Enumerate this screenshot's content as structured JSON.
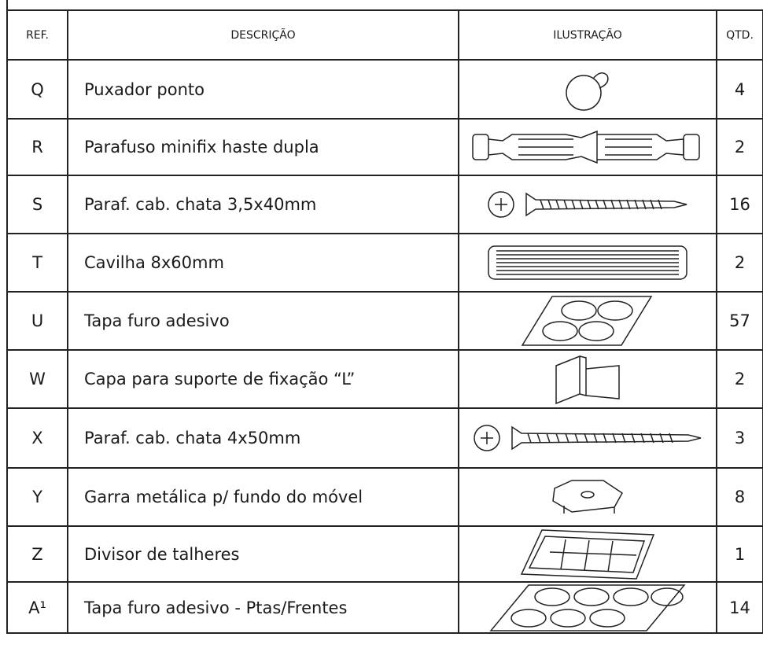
{
  "table": {
    "header": [
      "REF.",
      "DESCRIÇÃO",
      "ILUSTRAÇÃO",
      "QTD."
    ],
    "rows": [
      [
        "Q",
        "Puxador ponto",
        "4"
      ],
      [
        "R",
        "Parafuso minifix haste dupla",
        "2"
      ],
      [
        "S",
        "Paraf. cab. chata 3,5x40mm",
        "16"
      ],
      [
        "T",
        "Cavilha 8x60mm",
        "2"
      ],
      [
        "U",
        "Tapa furo adesivo",
        "57"
      ],
      [
        "W",
        "Capa para suporte de fixação “L”",
        "2"
      ],
      [
        "X",
        "Paraf. cab. chata 4x50mm",
        "3"
      ],
      [
        "Y",
        "Garra metálica p/ fundo do móvel",
        "8"
      ],
      [
        "Z",
        "Divisor de talheres",
        "1"
      ],
      [
        "A¹",
        "Tapa furo adesivo - Ptas/Frentes",
        "14"
      ]
    ]
  }
}
